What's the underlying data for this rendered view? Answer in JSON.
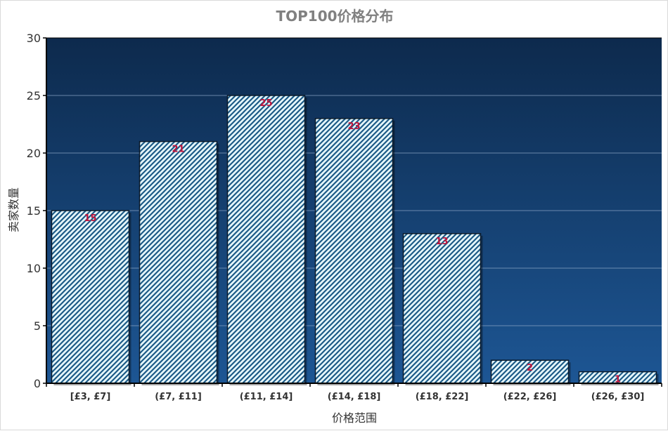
{
  "chart_data": {
    "type": "bar",
    "title": "TOP100价格分布",
    "xlabel": "价格范围",
    "ylabel": "卖家数量",
    "categories": [
      "[£3, £7]",
      "(£7, £11]",
      "(£11, £14]",
      "(£14, £18]",
      "(£18, £22]",
      "(£22, £26]",
      "(£26, £30]"
    ],
    "values": [
      15,
      21,
      25,
      23,
      13,
      2,
      1
    ],
    "ylim": [
      0,
      30
    ],
    "yticks": [
      0,
      5,
      10,
      15,
      20,
      25,
      30
    ],
    "grid": true,
    "legend": "none",
    "colors": {
      "plot_bg_top": "#0d2a4d",
      "plot_bg_bottom": "#1d5694",
      "bar_fill": "#e6f7fb",
      "bar_hatch": "#1c5a86",
      "bar_edge": "#0b1a2b",
      "data_label": "#c0143c",
      "title": "#808080",
      "axis_text": "#333333",
      "gridline": "#8fa9c8"
    }
  }
}
